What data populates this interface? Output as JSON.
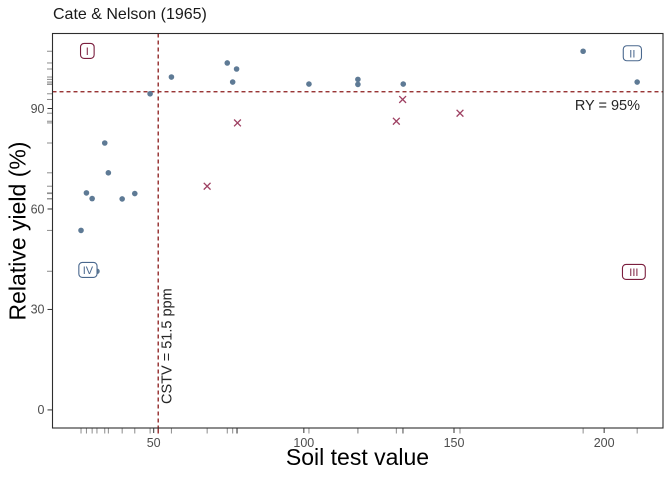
{
  "chart_data": {
    "type": "scatter",
    "title": "Cate & Nelson (1965)",
    "xlabel": "Soil test value",
    "ylabel": "Relative yield (%)",
    "xlim": [
      16.3,
      219.6
    ],
    "ylim": [
      -5.4,
      112.4
    ],
    "x_ticks": [
      50,
      100,
      150,
      200
    ],
    "y_ticks": [
      0,
      30,
      60,
      90
    ],
    "grid": false,
    "rug": true,
    "colors": {
      "dot": "#5e7a95",
      "cross": "#9e4062",
      "threshold_line": "#8b1a1a",
      "quadrant_red": "#7b1e3e",
      "quadrant_blue": "#4a688e",
      "panel_border": "#2e2e2e",
      "tick_label": "#4d4d4d",
      "rug_tick": "#8c8c8c",
      "annotation_text": "#262626"
    },
    "series": [
      {
        "name": "well-classified-points",
        "marker": "circle",
        "points": [
          [
            25.8,
            53.6
          ],
          [
            27.6,
            64.8
          ],
          [
            29.5,
            63.1
          ],
          [
            31.1,
            41.4
          ],
          [
            33.7,
            79.7
          ],
          [
            34.9,
            70.8
          ],
          [
            39.5,
            63.0
          ],
          [
            43.7,
            64.6
          ],
          [
            48.8,
            94.4
          ],
          [
            55.9,
            99.4
          ],
          [
            74.5,
            103.6
          ],
          [
            76.3,
            97.9
          ],
          [
            77.6,
            101.8
          ],
          [
            101.7,
            97.3
          ],
          [
            118.0,
            98.7
          ],
          [
            118.0,
            97.2
          ],
          [
            133.1,
            97.3
          ],
          [
            193.0,
            107.1
          ],
          [
            211.0,
            97.9
          ]
        ]
      },
      {
        "name": "misclassified-points",
        "marker": "x",
        "points": [
          [
            67.8,
            66.8
          ],
          [
            77.9,
            85.7
          ],
          [
            130.8,
            86.2
          ],
          [
            132.9,
            92.7
          ],
          [
            152.0,
            88.6
          ]
        ]
      }
    ],
    "reference_lines": {
      "hline": {
        "value": 95,
        "label": "RY = 95%"
      },
      "vline": {
        "value": 51.5,
        "label": "CSTV = 51.5 ppm"
      }
    },
    "quadrant_labels": [
      {
        "text": "I",
        "x": 27.9,
        "y": 107.2,
        "color_key": "quadrant_red"
      },
      {
        "text": "II",
        "x": 209.4,
        "y": 106.5,
        "color_key": "quadrant_blue"
      },
      {
        "text": "III",
        "x": 209.9,
        "y": 41.2,
        "color_key": "quadrant_red"
      },
      {
        "text": "IV",
        "x": 28.1,
        "y": 41.8,
        "color_key": "quadrant_blue"
      }
    ]
  }
}
